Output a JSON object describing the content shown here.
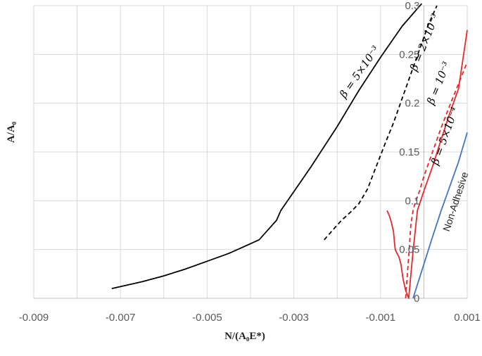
{
  "chart_data": {
    "type": "line",
    "xlabel": "N/(A₀E*)",
    "ylabel": "A/A₀",
    "xlim": [
      -0.009,
      0.001
    ],
    "ylim": [
      0,
      0.3
    ],
    "x_ticks": [
      "-0.009",
      "-0.007",
      "-0.005",
      "-0.003",
      "-0.001",
      "0.001"
    ],
    "y_ticks": [
      "0",
      "0.05",
      "0.1",
      "0.15",
      "0.2",
      "0.25",
      "0.3"
    ],
    "grid": true,
    "series": [
      {
        "name": "β = 5×10⁻³",
        "color": "#000000",
        "dash": "solid",
        "x": [
          -0.0072,
          -0.0065,
          -0.006,
          -0.0055,
          -0.005,
          -0.0045,
          -0.0042,
          -0.0038,
          -0.0034,
          -0.0033,
          -0.0026,
          -0.002,
          -0.0015,
          -0.001,
          -0.0005,
          -5e-05
        ],
        "y": [
          0.01,
          0.017,
          0.023,
          0.03,
          0.038,
          0.046,
          0.052,
          0.06,
          0.08,
          0.09,
          0.135,
          0.176,
          0.213,
          0.247,
          0.279,
          0.302
        ]
      },
      {
        "name": "β = 2×10⁻³",
        "color": "#000000",
        "dash": "dashed",
        "x": [
          -0.0023,
          -0.0021,
          -0.0019,
          -0.0017,
          -0.0015,
          -0.0013,
          -0.0011,
          -0.0009,
          -0.0007,
          -0.0005,
          -0.0003,
          -0.0001,
          0.0001,
          0.0003
        ],
        "y": [
          0.06,
          0.07,
          0.08,
          0.088,
          0.097,
          0.112,
          0.135,
          0.158,
          0.18,
          0.205,
          0.23,
          0.255,
          0.28,
          0.3
        ]
      },
      {
        "name": "β = 10⁻³",
        "color": "#e8262b",
        "dash": "solid",
        "x": [
          -0.00085,
          -0.0008,
          -0.00075,
          -0.0007,
          -0.00068,
          -0.00066,
          -0.00062,
          -0.00058,
          -0.00053,
          -0.00048,
          -0.00042,
          -0.00035,
          -0.00025,
          -0.00015,
          0.0,
          0.0002,
          0.0004,
          0.0006,
          0.0008,
          0.001
        ],
        "y": [
          0.09,
          0.085,
          0.078,
          0.068,
          0.058,
          0.05,
          0.046,
          0.043,
          0.035,
          0.02,
          0.008,
          0.0,
          0.048,
          0.09,
          0.11,
          0.135,
          0.163,
          0.19,
          0.215,
          0.275
        ]
      },
      {
        "name": "β = 5×10⁻⁴",
        "color": "#e8262b",
        "dash": "dashed",
        "x": [
          -0.00042,
          -0.00038,
          -0.00034,
          -0.0003,
          -0.00025,
          -0.0002,
          -0.0001,
          0.0,
          0.0002,
          0.0004,
          0.0006,
          0.0008,
          0.00098
        ],
        "y": [
          0.0,
          0.025,
          0.05,
          0.075,
          0.09,
          0.098,
          0.11,
          0.125,
          0.15,
          0.175,
          0.198,
          0.22,
          0.24
        ]
      },
      {
        "name": "Non-Adhesive",
        "color": "#4472c4",
        "dash": "solid",
        "x": [
          -0.00025,
          0.0,
          0.0002,
          0.0004,
          0.0006,
          0.0008,
          0.001
        ],
        "y": [
          0.0,
          0.035,
          0.063,
          0.09,
          0.115,
          0.14,
          0.17
        ]
      }
    ],
    "annotations": [
      "β = 5×10⁻³",
      "β = 2×10⁻³",
      "β = 10⁻³",
      "β = 5×10⁻⁴",
      "Non-Adhesive"
    ]
  }
}
